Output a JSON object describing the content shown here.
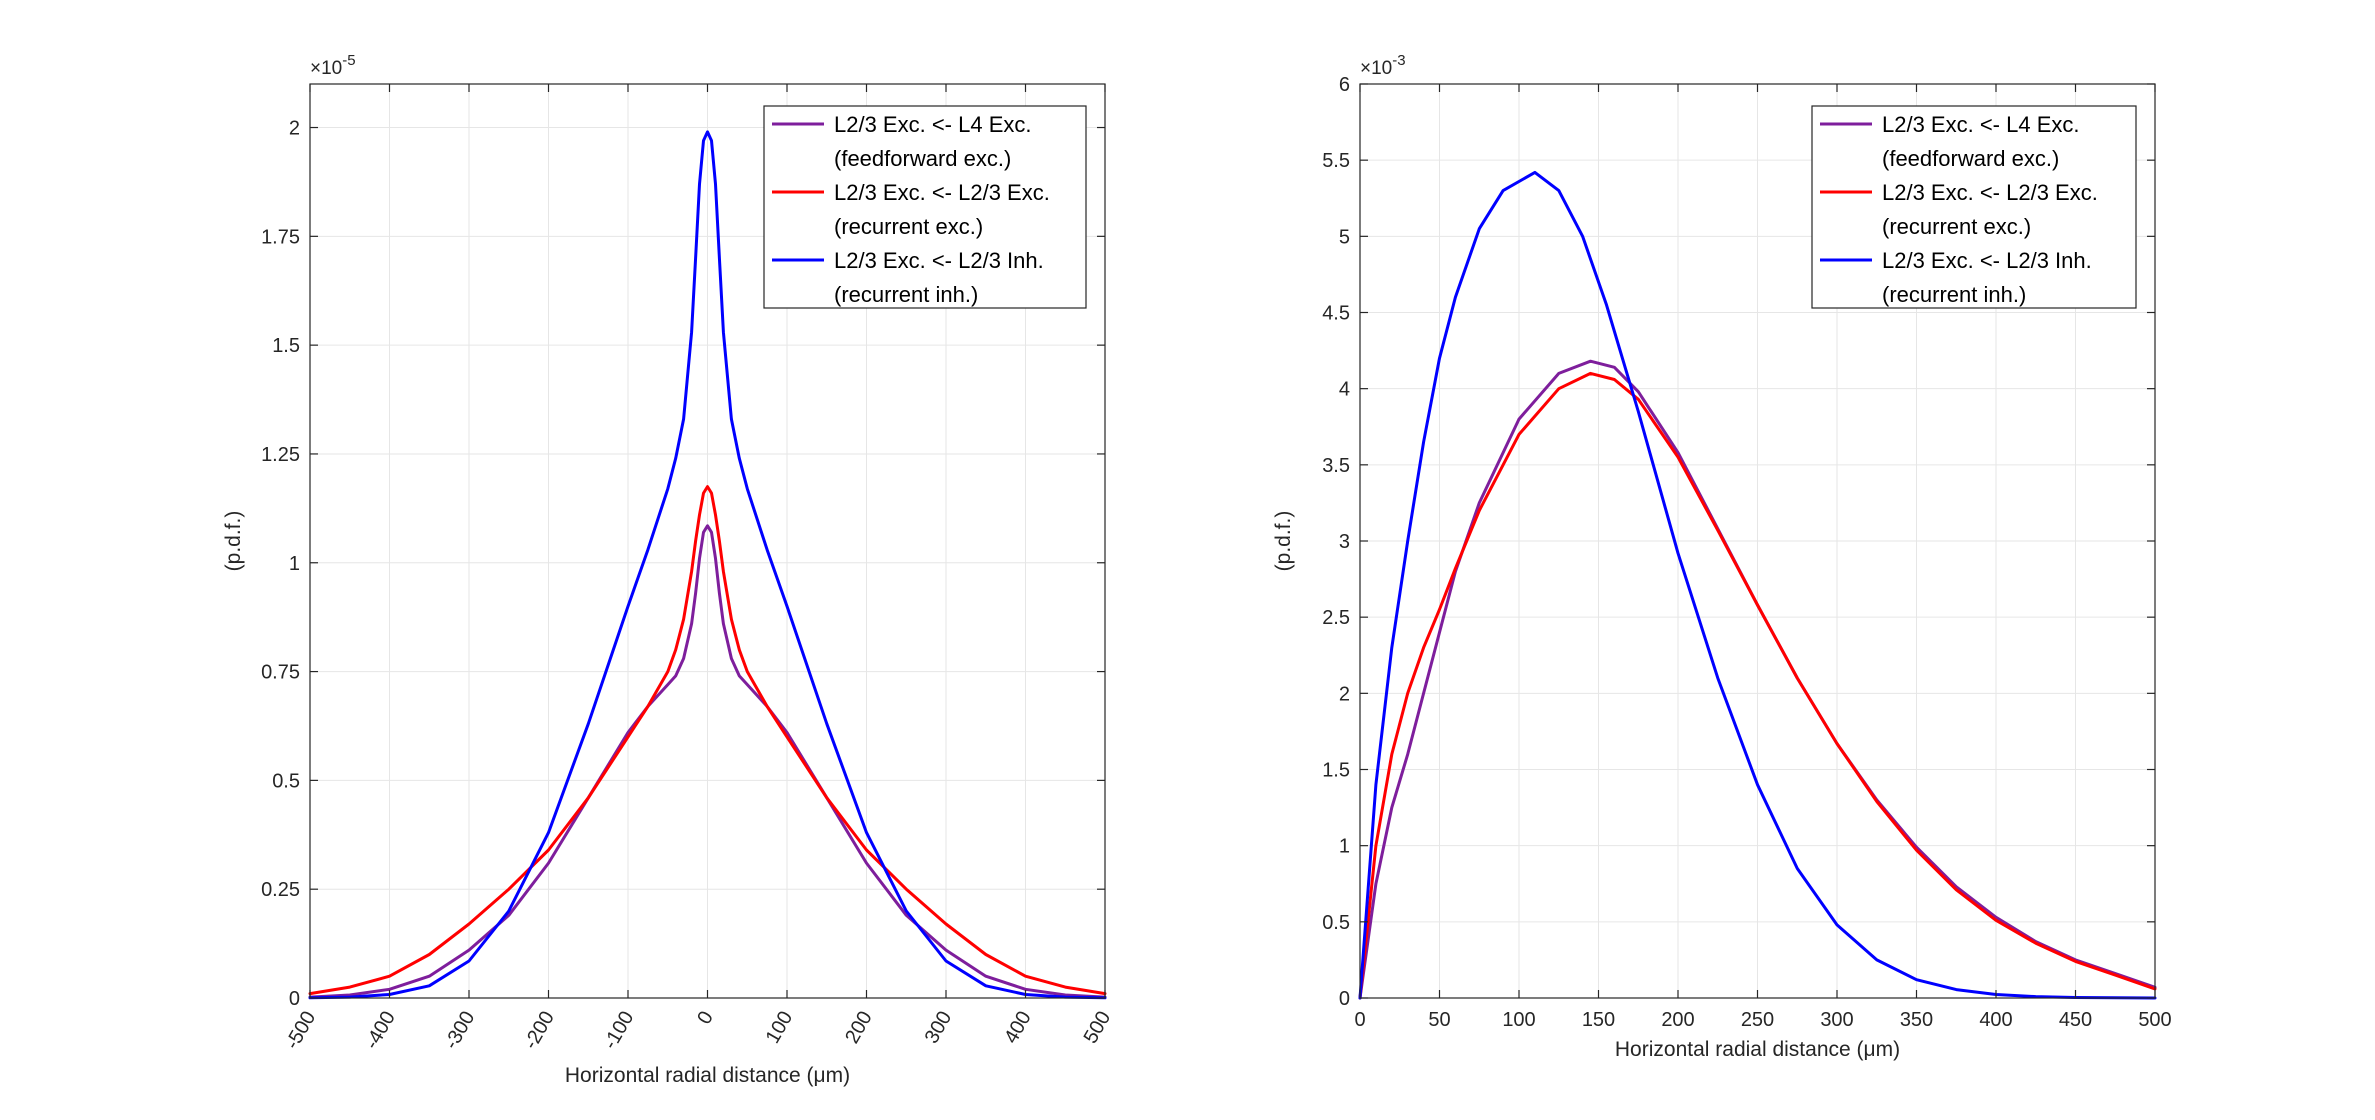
{
  "figure": {
    "colors": {
      "purple": "#7e1e9c",
      "red": "#ff0000",
      "blue": "#0000ff",
      "grid": "#e6e6e6",
      "axis": "#262626"
    }
  },
  "chart_data": [
    {
      "type": "line",
      "xlabel": "Horizontal radial distance (μm)",
      "ylabel": "(p.d.f.)",
      "y_exponent_label": "×10",
      "y_exponent": "-5",
      "xlim": [
        -500,
        500
      ],
      "ylim": [
        0,
        2.1
      ],
      "xticks": [
        -500,
        -400,
        -300,
        -200,
        -100,
        0,
        100,
        200,
        300,
        400,
        500
      ],
      "xtick_labels": [
        "-500",
        "-400",
        "-300",
        "-200",
        "-100",
        "0",
        "100",
        "200",
        "300",
        "400",
        "500"
      ],
      "yticks": [
        0,
        0.25,
        0.5,
        0.75,
        1,
        1.25,
        1.5,
        1.75,
        2
      ],
      "ytick_labels": [
        "0",
        "0.25",
        "0.5",
        "0.75",
        "1",
        "1.25",
        "1.5",
        "1.75",
        "2"
      ],
      "grid": true,
      "legend_position": "top-right",
      "legend": [
        {
          "line1": "L2/3 Exc. <- L4 Exc.",
          "line2": "(feedforward exc.)",
          "color": "#7e1e9c"
        },
        {
          "line1": "L2/3 Exc. <- L2/3 Exc.",
          "line2": "(recurrent exc.)",
          "color": "#ff0000"
        },
        {
          "line1": "L2/3 Exc. <- L2/3 Inh.",
          "line2": "(recurrent inh.)",
          "color": "#0000ff"
        }
      ],
      "series": [
        {
          "color": "#7e1e9c",
          "x": [
            -500,
            -450,
            -400,
            -350,
            -300,
            -250,
            -200,
            -150,
            -100,
            -75,
            -50,
            -40,
            -30,
            -20,
            -15,
            -10,
            -5,
            0,
            5,
            10,
            15,
            20,
            30,
            40,
            50,
            75,
            100,
            150,
            200,
            250,
            300,
            350,
            400,
            450,
            500
          ],
          "y": [
            0.002,
            0.007,
            0.02,
            0.05,
            0.11,
            0.19,
            0.31,
            0.46,
            0.61,
            0.67,
            0.72,
            0.74,
            0.78,
            0.86,
            0.93,
            1.01,
            1.07,
            1.085,
            1.07,
            1.01,
            0.93,
            0.86,
            0.78,
            0.74,
            0.72,
            0.67,
            0.61,
            0.46,
            0.31,
            0.19,
            0.11,
            0.05,
            0.02,
            0.007,
            0.002
          ]
        },
        {
          "color": "#ff0000",
          "x": [
            -500,
            -450,
            -400,
            -350,
            -300,
            -250,
            -200,
            -150,
            -100,
            -75,
            -50,
            -40,
            -30,
            -20,
            -15,
            -10,
            -5,
            0,
            5,
            10,
            15,
            20,
            30,
            40,
            50,
            75,
            100,
            150,
            200,
            250,
            300,
            350,
            400,
            450,
            500
          ],
          "y": [
            0.01,
            0.025,
            0.05,
            0.1,
            0.17,
            0.25,
            0.34,
            0.46,
            0.6,
            0.67,
            0.75,
            0.8,
            0.87,
            0.98,
            1.05,
            1.11,
            1.16,
            1.175,
            1.16,
            1.11,
            1.05,
            0.98,
            0.87,
            0.8,
            0.75,
            0.67,
            0.6,
            0.46,
            0.34,
            0.25,
            0.17,
            0.1,
            0.05,
            0.025,
            0.01
          ]
        },
        {
          "color": "#0000ff",
          "x": [
            -500,
            -450,
            -400,
            -350,
            -300,
            -250,
            -200,
            -150,
            -100,
            -75,
            -50,
            -40,
            -30,
            -20,
            -15,
            -10,
            -5,
            0,
            5,
            10,
            15,
            20,
            30,
            40,
            50,
            75,
            100,
            150,
            200,
            250,
            300,
            350,
            400,
            450,
            500
          ],
          "y": [
            0.0005,
            0.002,
            0.008,
            0.028,
            0.085,
            0.2,
            0.38,
            0.63,
            0.9,
            1.03,
            1.17,
            1.24,
            1.33,
            1.53,
            1.7,
            1.87,
            1.97,
            1.99,
            1.97,
            1.87,
            1.7,
            1.53,
            1.33,
            1.24,
            1.17,
            1.03,
            0.9,
            0.63,
            0.38,
            0.2,
            0.085,
            0.028,
            0.008,
            0.002,
            0.0005
          ]
        }
      ]
    },
    {
      "type": "line",
      "xlabel": "Horizontal radial distance (μm)",
      "ylabel": "(p.d.f.)",
      "y_exponent_label": "×10",
      "y_exponent": "-3",
      "xlim": [
        0,
        500
      ],
      "ylim": [
        0,
        6
      ],
      "xticks": [
        0,
        50,
        100,
        150,
        200,
        250,
        300,
        350,
        400,
        450,
        500
      ],
      "xtick_labels": [
        "0",
        "50",
        "100",
        "150",
        "200",
        "250",
        "300",
        "350",
        "400",
        "450",
        "500"
      ],
      "yticks": [
        0,
        0.5,
        1,
        1.5,
        2,
        2.5,
        3,
        3.5,
        4,
        4.5,
        5,
        5.5,
        6
      ],
      "ytick_labels": [
        "0",
        "0.5",
        "1",
        "1.5",
        "2",
        "2.5",
        "3",
        "3.5",
        "4",
        "4.5",
        "5",
        "5.5",
        "6"
      ],
      "grid": true,
      "legend_position": "top-right",
      "legend": [
        {
          "line1": "L2/3 Exc. <- L4 Exc.",
          "line2": "(feedforward exc.)",
          "color": "#7e1e9c"
        },
        {
          "line1": "L2/3 Exc. <- L2/3 Exc.",
          "line2": "(recurrent exc.)",
          "color": "#ff0000"
        },
        {
          "line1": "L2/3 Exc. <- L2/3 Inh.",
          "line2": "(recurrent inh.)",
          "color": "#0000ff"
        }
      ],
      "series": [
        {
          "color": "#7e1e9c",
          "x": [
            0,
            10,
            20,
            30,
            40,
            50,
            60,
            75,
            100,
            125,
            145,
            160,
            175,
            200,
            225,
            250,
            275,
            300,
            325,
            350,
            375,
            400,
            425,
            450,
            475,
            500
          ],
          "y": [
            0,
            0.75,
            1.25,
            1.6,
            2.0,
            2.4,
            2.8,
            3.25,
            3.8,
            4.1,
            4.18,
            4.14,
            3.98,
            3.58,
            3.08,
            2.58,
            2.1,
            1.67,
            1.3,
            0.99,
            0.73,
            0.53,
            0.37,
            0.25,
            0.16,
            0.07
          ]
        },
        {
          "color": "#ff0000",
          "x": [
            0,
            10,
            20,
            30,
            40,
            50,
            60,
            75,
            100,
            125,
            145,
            160,
            175,
            200,
            225,
            250,
            275,
            300,
            325,
            350,
            375,
            400,
            425,
            450,
            475,
            500
          ],
          "y": [
            0,
            1.0,
            1.6,
            2.0,
            2.3,
            2.55,
            2.82,
            3.2,
            3.7,
            4.0,
            4.1,
            4.06,
            3.93,
            3.55,
            3.07,
            2.58,
            2.1,
            1.67,
            1.29,
            0.97,
            0.71,
            0.51,
            0.36,
            0.24,
            0.15,
            0.06
          ]
        },
        {
          "color": "#0000ff",
          "x": [
            0,
            10,
            20,
            30,
            40,
            50,
            60,
            75,
            90,
            110,
            125,
            140,
            155,
            175,
            200,
            225,
            250,
            275,
            300,
            325,
            350,
            375,
            400,
            425,
            450,
            475,
            500
          ],
          "y": [
            0,
            1.4,
            2.3,
            3.0,
            3.65,
            4.2,
            4.6,
            5.05,
            5.3,
            5.42,
            5.3,
            5.0,
            4.55,
            3.85,
            2.92,
            2.1,
            1.4,
            0.85,
            0.48,
            0.25,
            0.12,
            0.055,
            0.023,
            0.009,
            0.003,
            0.001,
            0.0003
          ]
        }
      ]
    }
  ]
}
